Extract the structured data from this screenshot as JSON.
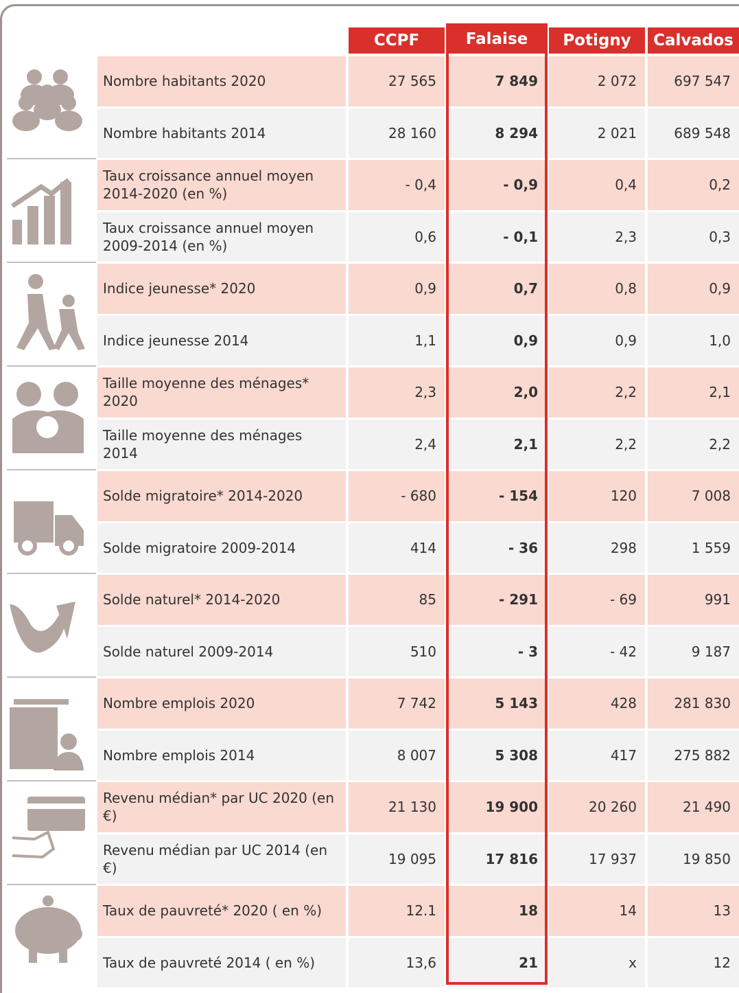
{
  "table": {
    "columns": [
      "CCPF",
      "Falaise",
      "Potigny",
      "Calvados"
    ],
    "rows": [
      {
        "label": "Nombre habitants 2020",
        "values": [
          "27 565",
          "7 849",
          "2 072",
          "697 547"
        ]
      },
      {
        "label": "Nombre habitants 2014",
        "values": [
          "28 160",
          "8 294",
          "2 021",
          "689 548"
        ]
      },
      {
        "label": "Taux croissance annuel moyen 2014-2020 (en %)",
        "values": [
          "- 0,4",
          "- 0,9",
          "0,4",
          "0,2"
        ]
      },
      {
        "label": "Taux croissance annuel moyen 2009-2014 (en %)",
        "values": [
          "0,6",
          "- 0,1",
          "2,3",
          "0,3"
        ]
      },
      {
        "label": "Indice jeunesse* 2020",
        "values": [
          "0,9",
          "0,7",
          "0,8",
          "0,9"
        ]
      },
      {
        "label": "Indice jeunesse 2014",
        "values": [
          "1,1",
          "0,9",
          "0,9",
          "1,0"
        ]
      },
      {
        "label": "Taille moyenne des ménages* 2020",
        "values": [
          "2,3",
          "2,0",
          "2,2",
          "2,1"
        ]
      },
      {
        "label": "Taille moyenne des ménages 2014",
        "values": [
          "2,4",
          "2,1",
          "2,2",
          "2,2"
        ]
      },
      {
        "label": "Solde migratoire* 2014-2020",
        "values": [
          "- 680",
          "- 154",
          "120",
          "7 008"
        ]
      },
      {
        "label": "Solde migratoire 2009-2014",
        "values": [
          "414",
          "- 36",
          "298",
          "1 559"
        ]
      },
      {
        "label": "Solde naturel* 2014-2020",
        "values": [
          "85",
          "- 291",
          "- 69",
          "991"
        ]
      },
      {
        "label": "Solde naturel 2009-2014",
        "values": [
          "510",
          "- 3",
          "- 42",
          "9 187"
        ]
      },
      {
        "label": "Nombre emplois 2020",
        "values": [
          "7 742",
          "5 143",
          "428",
          "281 830"
        ]
      },
      {
        "label": "Nombre emplois 2014",
        "values": [
          "8 007",
          "5 308",
          "417",
          "275 882"
        ]
      },
      {
        "label": "Revenu médian* par UC 2020 (en €)",
        "values": [
          "21 130",
          "19 900",
          "20 260",
          "21 490"
        ]
      },
      {
        "label": "Revenu médian par UC 2014 (en €)",
        "values": [
          "19 095",
          "17 816",
          "17 937",
          "19 850"
        ]
      },
      {
        "label": "Taux de pauvreté* 2020 ( en %)",
        "values": [
          "12.1",
          "18",
          "14",
          "13"
        ]
      },
      {
        "label": "Taux de pauvreté 2014 ( en %)",
        "values": [
          "13,6",
          "21",
          "x",
          "12"
        ]
      }
    ]
  }
}
